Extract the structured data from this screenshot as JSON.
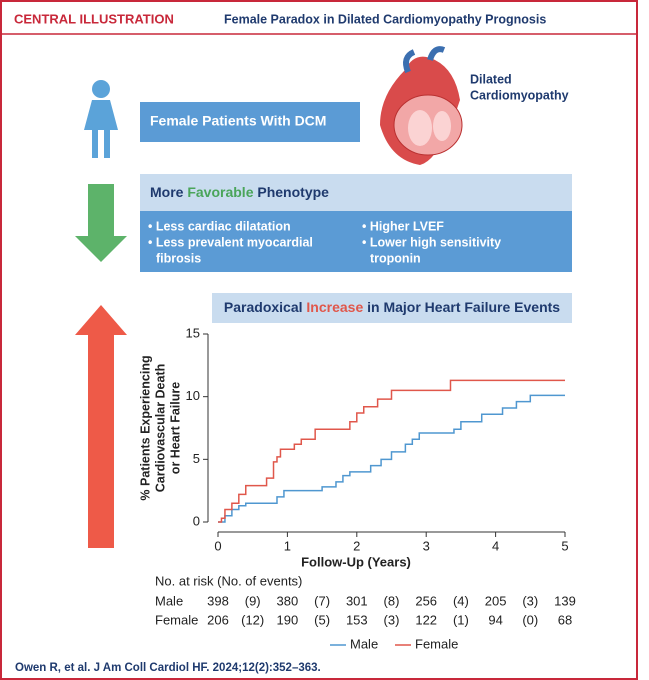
{
  "header": {
    "label": "CENTRAL ILLUSTRATION",
    "title": "Female Paradox in Dilated Cardiomyopathy Prognosis"
  },
  "patients_box": "Female Patients With DCM",
  "heart_label": [
    "Dilated",
    "Cardiomyopathy"
  ],
  "phenotype": {
    "title_parts": [
      "More ",
      "Favorable",
      " Phenotype"
    ],
    "bullets_left": [
      "• Less cardiac dilatation",
      "• Less prevalent myocardial",
      "fibrosis"
    ],
    "bullets_right": [
      "• Higher LVEF",
      "• Lower high sensitivity",
      "troponin"
    ]
  },
  "chart_data": {
    "type": "step",
    "title_parts": [
      "Paradoxical ",
      "Increase",
      " in Major Heart Failure Events"
    ],
    "x_label": "Follow-Up (Years)",
    "y_label": [
      "% Patients Experiencing",
      "Cardiovascular Death",
      "or Heart Failure"
    ],
    "xlim": [
      0,
      5
    ],
    "xticks": [
      0,
      1,
      2,
      3,
      4,
      5
    ],
    "ylim": [
      0,
      15
    ],
    "yticks": [
      0,
      5,
      10,
      15
    ],
    "series": [
      {
        "name": "Male",
        "color": "#4f97d0",
        "x": [
          0,
          0.1,
          0.2,
          0.3,
          0.4,
          0.85,
          0.95,
          1.5,
          1.7,
          1.8,
          1.9,
          2.2,
          2.35,
          2.5,
          2.7,
          2.8,
          2.9,
          3.4,
          3.5,
          3.8,
          4.1,
          4.3,
          4.5,
          5
        ],
        "values": [
          0,
          0.5,
          1,
          1.3,
          1.5,
          2,
          2.5,
          2.8,
          3.2,
          3.7,
          4,
          4.5,
          5,
          5.6,
          6.2,
          6.6,
          7.1,
          7.4,
          8,
          8.6,
          9.1,
          9.6,
          10.1,
          10.1
        ]
      },
      {
        "name": "Female",
        "color": "#e0574b",
        "x": [
          0,
          0.05,
          0.1,
          0.2,
          0.3,
          0.4,
          0.7,
          0.8,
          0.85,
          0.9,
          1.1,
          1.2,
          1.4,
          1.9,
          2.0,
          2.1,
          2.3,
          2.5,
          3.35,
          5
        ],
        "values": [
          0,
          0.3,
          1,
          1.5,
          2.2,
          2.9,
          3.5,
          4.8,
          5.2,
          5.8,
          6.2,
          6.6,
          7.4,
          8,
          8.7,
          9.2,
          9.8,
          10.5,
          11.3,
          11.3
        ]
      }
    ],
    "risk_table": {
      "title": "No. at risk (No. of events)",
      "rows": [
        {
          "name": "Male",
          "cells": [
            "398",
            "(9)",
            "380",
            "(7)",
            "301",
            "(8)",
            "256",
            "(4)",
            "205",
            "(3)",
            "139"
          ]
        },
        {
          "name": "Female",
          "cells": [
            "206",
            "(12)",
            "190",
            "(5)",
            "153",
            "(3)",
            "122",
            "(1)",
            "94",
            "(0)",
            "68"
          ]
        }
      ]
    }
  },
  "citation": "Owen R, et al. J Am Coll Cardiol HF. 2024;12(2):352–363."
}
